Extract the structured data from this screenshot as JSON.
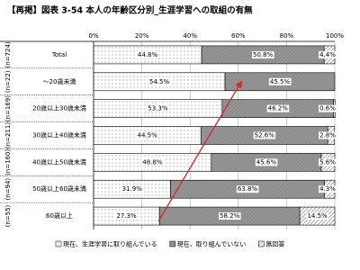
{
  "chart_data": {
    "type": "stacked-bar-horizontal",
    "title": "【再掲】図表 3-54 本人の年齢区分別_生涯学習への取組の有無",
    "categories": [
      "Total",
      "～20歳未満",
      "20歳以上30歳未満",
      "30歳以上40歳未満",
      "40歳以上50歳未満",
      "50歳以上60歳未満",
      "60歳以上"
    ],
    "sample_sizes": [
      "(n=724)",
      "(n=22)",
      "(n=169)",
      "(n=211)",
      "(n=160)",
      "(n=94)",
      "(n=55)"
    ],
    "series": [
      {
        "name": "現在、生涯学習に取り組んでいる",
        "color": "#ffffff",
        "values": [
          44.8,
          54.5,
          53.3,
          44.5,
          48.8,
          31.9,
          27.3
        ],
        "value_labels": [
          "44.8%",
          "54.5%",
          "53.3%",
          "44.5%",
          "48.8%",
          "31.9%",
          "27.3%"
        ]
      },
      {
        "name": "現在、取り組んでいない",
        "color": "#8c8c8c",
        "values": [
          50.8,
          45.5,
          46.2,
          52.6,
          45.6,
          63.8,
          58.2
        ],
        "value_labels": [
          "50.8%",
          "45.5%",
          "46.2%",
          "52.6%",
          "45.6%",
          "63.8%",
          "58.2%"
        ]
      },
      {
        "name": "無回答",
        "color": "#ffffff",
        "values": [
          4.4,
          0,
          0.6,
          2.8,
          5.6,
          4.3,
          14.5
        ],
        "value_labels": [
          "4.4%",
          null,
          "0.6%",
          "2.8%",
          "5.6%",
          "4.3%",
          "14.5%"
        ]
      }
    ],
    "xlim": [
      0,
      100
    ],
    "xticks": [
      {
        "value": 0,
        "label": "0%"
      },
      {
        "value": 20,
        "label": "20%"
      },
      {
        "value": 40,
        "label": "40%"
      },
      {
        "value": 60,
        "label": "60%"
      },
      {
        "value": 80,
        "label": "80%"
      },
      {
        "value": 100,
        "label": "100%"
      }
    ],
    "grid": true
  }
}
